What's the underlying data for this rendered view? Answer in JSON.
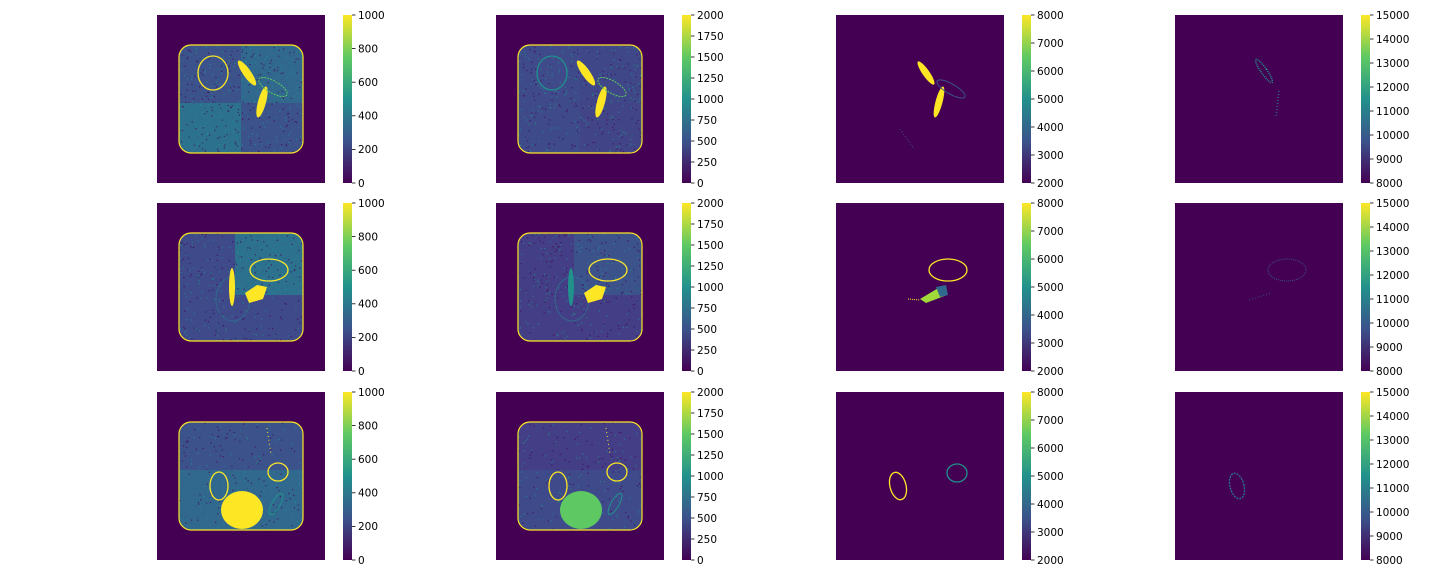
{
  "figure": {
    "rows": 3,
    "cols": 4,
    "colormap": "viridis",
    "colormap_stops": [
      "#440154",
      "#3b528b",
      "#21918c",
      "#5ec962",
      "#fde725"
    ],
    "background_color": "#440154",
    "highlight_color": "#fde725"
  },
  "chart_data": [
    {
      "type": "heatmap",
      "panel": "row1-col1",
      "colorbar": {
        "range": [
          0,
          1000
        ],
        "ticks": [
          "0",
          "200",
          "400",
          "600",
          "800",
          "1000"
        ]
      }
    },
    {
      "type": "heatmap",
      "panel": "row1-col2",
      "colorbar": {
        "range": [
          0,
          2000
        ],
        "ticks": [
          "0",
          "250",
          "500",
          "750",
          "1000",
          "1250",
          "1500",
          "1750",
          "2000"
        ]
      }
    },
    {
      "type": "heatmap",
      "panel": "row1-col3",
      "colorbar": {
        "range": [
          2000,
          8000
        ],
        "ticks": [
          "2000",
          "3000",
          "4000",
          "5000",
          "6000",
          "7000",
          "8000"
        ]
      }
    },
    {
      "type": "heatmap",
      "panel": "row1-col4",
      "colorbar": {
        "range": [
          8000,
          15000
        ],
        "ticks": [
          "8000",
          "9000",
          "10000",
          "11000",
          "12000",
          "13000",
          "14000",
          "15000"
        ]
      }
    },
    {
      "type": "heatmap",
      "panel": "row2-col1",
      "colorbar": {
        "range": [
          0,
          1000
        ],
        "ticks": [
          "0",
          "200",
          "400",
          "600",
          "800",
          "1000"
        ]
      }
    },
    {
      "type": "heatmap",
      "panel": "row2-col2",
      "colorbar": {
        "range": [
          0,
          2000
        ],
        "ticks": [
          "0",
          "250",
          "500",
          "750",
          "1000",
          "1250",
          "1500",
          "1750",
          "2000"
        ]
      }
    },
    {
      "type": "heatmap",
      "panel": "row2-col3",
      "colorbar": {
        "range": [
          2000,
          8000
        ],
        "ticks": [
          "2000",
          "3000",
          "4000",
          "5000",
          "6000",
          "7000",
          "8000"
        ]
      }
    },
    {
      "type": "heatmap",
      "panel": "row2-col4",
      "colorbar": {
        "range": [
          8000,
          15000
        ],
        "ticks": [
          "8000",
          "9000",
          "10000",
          "11000",
          "12000",
          "13000",
          "14000",
          "15000"
        ]
      }
    },
    {
      "type": "heatmap",
      "panel": "row3-col1",
      "colorbar": {
        "range": [
          0,
          1000
        ],
        "ticks": [
          "0",
          "200",
          "400",
          "600",
          "800",
          "1000"
        ]
      }
    },
    {
      "type": "heatmap",
      "panel": "row3-col2",
      "colorbar": {
        "range": [
          0,
          2000
        ],
        "ticks": [
          "0",
          "250",
          "500",
          "750",
          "1000",
          "1250",
          "1500",
          "1750",
          "2000"
        ]
      }
    },
    {
      "type": "heatmap",
      "panel": "row3-col3",
      "colorbar": {
        "range": [
          2000,
          8000
        ],
        "ticks": [
          "2000",
          "3000",
          "4000",
          "5000",
          "6000",
          "7000",
          "8000"
        ]
      }
    },
    {
      "type": "heatmap",
      "panel": "row3-col4",
      "colorbar": {
        "range": [
          8000,
          15000
        ],
        "ticks": [
          "8000",
          "9000",
          "10000",
          "11000",
          "12000",
          "13000",
          "14000",
          "15000"
        ]
      }
    }
  ]
}
